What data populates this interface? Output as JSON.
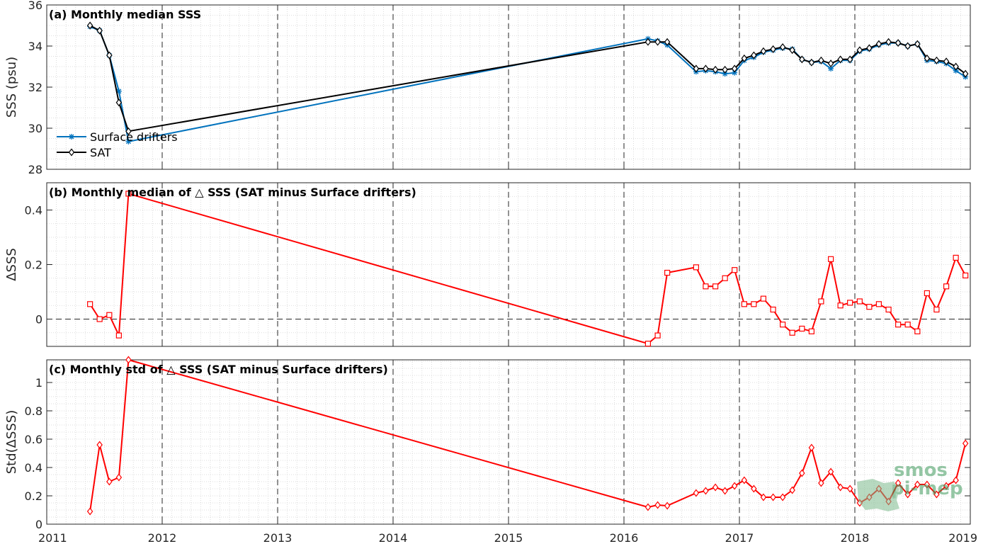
{
  "chart_data": [
    {
      "type": "line",
      "title": "(a) Monthly median SSS",
      "ylabel": "SSS (psu)",
      "xlim": [
        2011,
        2019
      ],
      "ylim": [
        28,
        36
      ],
      "yticks": [
        28,
        30,
        32,
        34,
        36
      ],
      "grid": true,
      "legend_position": "lower-left",
      "series": [
        {
          "name": "Surface drifters",
          "color": "#0072bd",
          "marker": "asterisk",
          "x": [
            2011.375,
            2011.458,
            2011.542,
            2011.625,
            2011.708,
            2016.208,
            2016.292,
            2016.375,
            2016.625,
            2016.708,
            2016.792,
            2016.875,
            2016.958,
            2017.042,
            2017.125,
            2017.208,
            2017.292,
            2017.375,
            2017.458,
            2017.542,
            2017.625,
            2017.708,
            2017.792,
            2017.875,
            2017.958,
            2018.042,
            2018.125,
            2018.208,
            2018.292,
            2018.375,
            2018.458,
            2018.542,
            2018.625,
            2018.708,
            2018.792,
            2018.875,
            2018.958
          ],
          "y": [
            34.95,
            34.75,
            33.55,
            31.8,
            29.35,
            34.35,
            34.25,
            34.05,
            32.75,
            32.8,
            32.75,
            32.65,
            32.7,
            33.3,
            33.45,
            33.7,
            33.8,
            33.9,
            33.85,
            33.35,
            33.2,
            33.25,
            32.9,
            33.3,
            33.3,
            33.75,
            33.85,
            34.05,
            34.15,
            34.15,
            34.0,
            34.1,
            33.3,
            33.25,
            33.15,
            32.8,
            32.5
          ]
        },
        {
          "name": "SAT",
          "color": "#000000",
          "marker": "diamond",
          "x": [
            2011.375,
            2011.458,
            2011.542,
            2011.625,
            2011.708,
            2016.208,
            2016.292,
            2016.375,
            2016.625,
            2016.708,
            2016.792,
            2016.875,
            2016.958,
            2017.042,
            2017.125,
            2017.208,
            2017.292,
            2017.375,
            2017.458,
            2017.542,
            2017.625,
            2017.708,
            2017.792,
            2017.875,
            2017.958,
            2018.042,
            2018.125,
            2018.208,
            2018.292,
            2018.375,
            2018.458,
            2018.542,
            2018.625,
            2018.708,
            2018.792,
            2018.875,
            2018.958
          ],
          "y": [
            35.0,
            34.75,
            33.55,
            31.25,
            29.85,
            34.2,
            34.2,
            34.2,
            32.9,
            32.9,
            32.85,
            32.85,
            32.9,
            33.4,
            33.55,
            33.75,
            33.85,
            33.95,
            33.8,
            33.35,
            33.2,
            33.3,
            33.15,
            33.35,
            33.35,
            33.8,
            33.9,
            34.1,
            34.2,
            34.15,
            34.0,
            34.1,
            33.4,
            33.3,
            33.25,
            33.0,
            32.65
          ]
        }
      ]
    },
    {
      "type": "line",
      "title": "(b) Monthly median of △ SSS (SAT minus Surface drifters)",
      "ylabel": "ΔSSS",
      "xlim": [
        2011,
        2019
      ],
      "ylim": [
        -0.1,
        0.5
      ],
      "yticks": [
        0,
        0.2,
        0.4
      ],
      "zero_line": true,
      "grid": true,
      "series": [
        {
          "color": "#ff0000",
          "marker": "square",
          "x": [
            2011.375,
            2011.458,
            2011.542,
            2011.625,
            2011.708,
            2016.208,
            2016.292,
            2016.375,
            2016.625,
            2016.708,
            2016.792,
            2016.875,
            2016.958,
            2017.042,
            2017.125,
            2017.208,
            2017.292,
            2017.375,
            2017.458,
            2017.542,
            2017.625,
            2017.708,
            2017.792,
            2017.875,
            2017.958,
            2018.042,
            2018.125,
            2018.208,
            2018.292,
            2018.375,
            2018.458,
            2018.542,
            2018.625,
            2018.708,
            2018.792,
            2018.875,
            2018.958
          ],
          "y": [
            0.055,
            0.0,
            0.015,
            -0.06,
            0.46,
            -0.09,
            -0.06,
            0.17,
            0.19,
            0.12,
            0.12,
            0.15,
            0.18,
            0.055,
            0.055,
            0.075,
            0.035,
            -0.02,
            -0.05,
            -0.035,
            -0.045,
            0.065,
            0.22,
            0.05,
            0.06,
            0.065,
            0.045,
            0.055,
            0.035,
            -0.02,
            -0.02,
            -0.045,
            0.095,
            0.035,
            0.12,
            0.225,
            0.16
          ]
        }
      ]
    },
    {
      "type": "line",
      "title": "(c) Monthly std of △ SSS (SAT minus Surface drifters)",
      "ylabel": "Std(ΔSSS)",
      "xlim": [
        2011,
        2019
      ],
      "ylim": [
        0,
        1.16
      ],
      "yticks": [
        0,
        0.2,
        0.4,
        0.6,
        0.8,
        1
      ],
      "xticks": [
        2011,
        2012,
        2013,
        2014,
        2015,
        2016,
        2017,
        2018,
        2019
      ],
      "grid": true,
      "series": [
        {
          "color": "#ff0000",
          "marker": "diamond",
          "x": [
            2011.375,
            2011.458,
            2011.542,
            2011.625,
            2011.708,
            2016.208,
            2016.292,
            2016.375,
            2016.625,
            2016.708,
            2016.792,
            2016.875,
            2016.958,
            2017.042,
            2017.125,
            2017.208,
            2017.292,
            2017.375,
            2017.458,
            2017.542,
            2017.625,
            2017.708,
            2017.792,
            2017.875,
            2017.958,
            2018.042,
            2018.125,
            2018.208,
            2018.292,
            2018.375,
            2018.458,
            2018.542,
            2018.625,
            2018.708,
            2018.792,
            2018.875,
            2018.958
          ],
          "y": [
            0.09,
            0.56,
            0.3,
            0.33,
            1.16,
            0.12,
            0.135,
            0.13,
            0.22,
            0.235,
            0.26,
            0.235,
            0.27,
            0.31,
            0.25,
            0.19,
            0.19,
            0.19,
            0.24,
            0.36,
            0.54,
            0.29,
            0.37,
            0.26,
            0.25,
            0.15,
            0.19,
            0.25,
            0.16,
            0.29,
            0.21,
            0.28,
            0.28,
            0.21,
            0.27,
            0.31,
            0.57
          ]
        }
      ]
    }
  ],
  "watermark": {
    "line1": "smos",
    "line2": "pi-mep"
  }
}
